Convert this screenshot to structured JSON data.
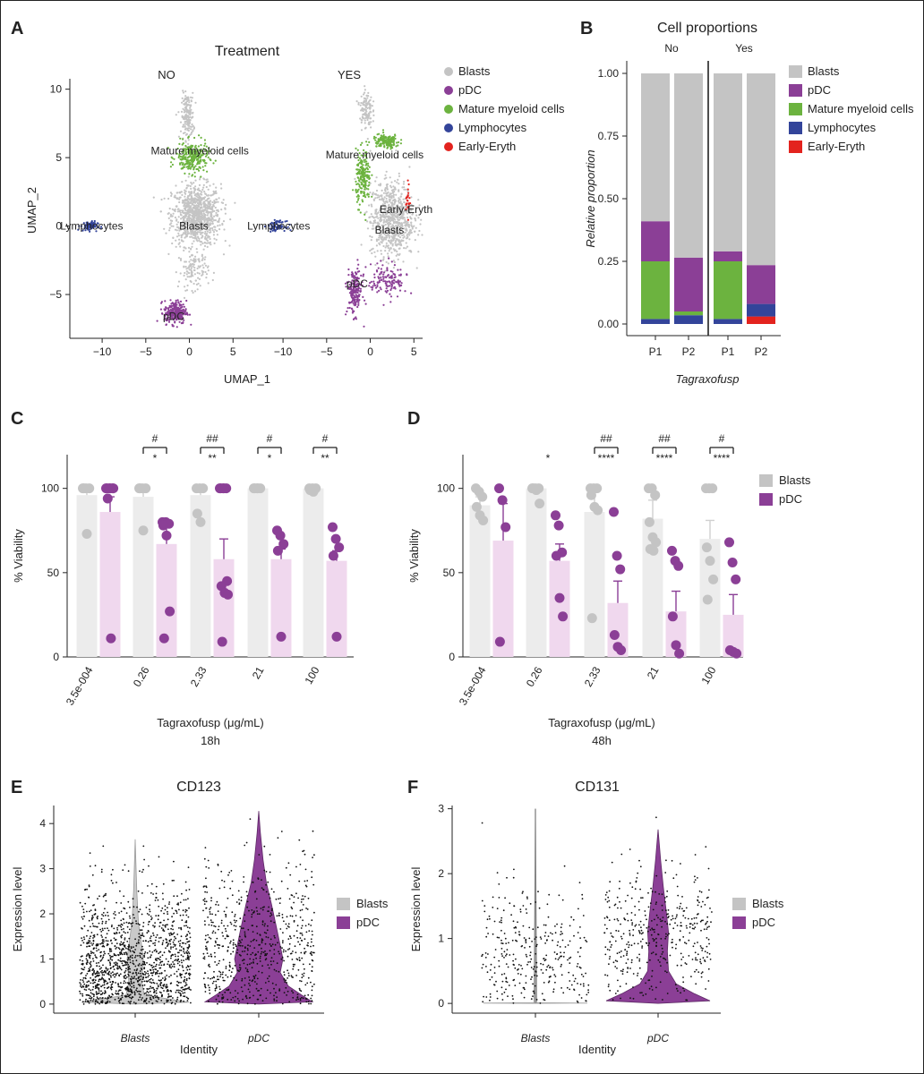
{
  "panels": {
    "A": "A",
    "B": "B",
    "C": "C",
    "D": "D",
    "E": "E",
    "F": "F"
  },
  "chart_data": [
    {
      "panel": "A",
      "type": "scatter",
      "title": "Treatment",
      "facets": [
        "NO",
        "YES"
      ],
      "xlabel": "UMAP_1",
      "ylabel": "UMAP_2",
      "xlim": [
        -13.5,
        6
      ],
      "ylim": [
        -8.2,
        10.5
      ],
      "x_ticks": [
        -10,
        -5,
        0,
        5
      ],
      "x_tick_labels": [
        "−10",
        "−5",
        "0",
        "5"
      ],
      "y_ticks": [
        -5,
        0,
        5,
        10
      ],
      "y_tick_labels": [
        "−5",
        "0",
        "5",
        "10"
      ],
      "legend": [
        {
          "name": "Blasts",
          "color": "#c4c4c4"
        },
        {
          "name": "pDC",
          "color": "#8b3f96"
        },
        {
          "name": "Mature myeloid cells",
          "color": "#6cb33f"
        },
        {
          "name": "Lymphocytes",
          "color": "#33449a"
        },
        {
          "name": "Early-Eryth",
          "color": "#e3231e"
        }
      ],
      "clusters": {
        "NO": [
          {
            "label": "Mature myeloid cells",
            "cx": 1.2,
            "cy": 5.5,
            "color": "#6cb33f"
          },
          {
            "label": "Lymphocytes",
            "cx": -11.2,
            "cy": 0.0,
            "color": "#33449a"
          },
          {
            "label": "Blasts",
            "cx": 0.5,
            "cy": 0.0,
            "color": "#c4c4c4"
          },
          {
            "label": "pDC",
            "cx": -1.8,
            "cy": -6.6,
            "color": "#8b3f96"
          }
        ],
        "YES": [
          {
            "label": "Mature myeloid cells",
            "cx": 0.5,
            "cy": 5.2,
            "color": "#6cb33f"
          },
          {
            "label": "Lymphocytes",
            "cx": -10.5,
            "cy": 0.0,
            "color": "#33449a"
          },
          {
            "label": "Early-Eryth",
            "cx": 4.1,
            "cy": 1.2,
            "color": "#e3231e"
          },
          {
            "label": "Blasts",
            "cx": 2.2,
            "cy": -0.3,
            "color": "#c4c4c4"
          },
          {
            "label": "pDC",
            "cx": -1.5,
            "cy": -4.2,
            "color": "#8b3f96"
          }
        ]
      }
    },
    {
      "panel": "B",
      "type": "bar",
      "title": "Cell proportions",
      "facets": [
        "No",
        "Yes"
      ],
      "categories": [
        "P1",
        "P2",
        "P1",
        "P2"
      ],
      "xlabel": "Tagraxofusp",
      "ylabel": "Relative proportion",
      "ylim": [
        0,
        1.0
      ],
      "y_ticks": [
        0,
        0.25,
        0.5,
        0.75,
        1.0
      ],
      "y_tick_labels": [
        "0.00",
        "0.25",
        "0.50",
        "0.75",
        "1.00"
      ],
      "series": [
        {
          "name": "Early-Eryth",
          "color": "#e3231e",
          "values": [
            0.0,
            0.0,
            0.0,
            0.03
          ]
        },
        {
          "name": "Lymphocytes",
          "color": "#33449a",
          "values": [
            0.02,
            0.035,
            0.02,
            0.05
          ]
        },
        {
          "name": "Mature myeloid cells",
          "color": "#6cb33f",
          "values": [
            0.23,
            0.015,
            0.23,
            0.0
          ]
        },
        {
          "name": "pDC",
          "color": "#8b3f96",
          "values": [
            0.16,
            0.215,
            0.04,
            0.155
          ]
        },
        {
          "name": "Blasts",
          "color": "#c4c4c4",
          "values": [
            0.59,
            0.735,
            0.71,
            0.765
          ]
        }
      ],
      "legend": [
        {
          "name": "Blasts",
          "color": "#c4c4c4"
        },
        {
          "name": "pDC",
          "color": "#8b3f96"
        },
        {
          "name": "Mature myeloid cells",
          "color": "#6cb33f"
        },
        {
          "name": "Lymphocytes",
          "color": "#33449a"
        },
        {
          "name": "Early-Eryth",
          "color": "#e3231e"
        }
      ]
    },
    {
      "panel": "C",
      "type": "bar",
      "categories": [
        "3.5e-004",
        "0.26",
        "2.33",
        "21",
        "100"
      ],
      "xlabel": "Tagraxofusp (μg/mL)",
      "subtitle": "18h",
      "ylabel": "% Viability",
      "ylim": [
        0,
        120
      ],
      "y_ticks": [
        0,
        50,
        100
      ],
      "y_tick_labels": [
        "0",
        "50",
        "100"
      ],
      "series": [
        {
          "name": "Blasts",
          "color": "#c4c4c4",
          "values": [
            96,
            95,
            96,
            100,
            100
          ],
          "errors": [
            2,
            3,
            3,
            0,
            0
          ],
          "points": [
            [
              100,
              100,
              100,
              100,
              73
            ],
            [
              100,
              100,
              100,
              100,
              75
            ],
            [
              100,
              100,
              100,
              85,
              80
            ],
            [
              100,
              100,
              100,
              100,
              100
            ],
            [
              100,
              100,
              100,
              99,
              98
            ]
          ]
        },
        {
          "name": "pDC",
          "color": "#8b3f96",
          "values": [
            86,
            67,
            58,
            58,
            57
          ],
          "errors": [
            9,
            11,
            12,
            6,
            6
          ],
          "points": [
            [
              100,
              100,
              100,
              100,
              100,
              100,
              94,
              11
            ],
            [
              80,
              80,
              79,
              78,
              72,
              27,
              11
            ],
            [
              100,
              100,
              100,
              100,
              100,
              45,
              42,
              38,
              37,
              9
            ],
            [
              75,
              72,
              67,
              63,
              12
            ],
            [
              77,
              70,
              65,
              60,
              12
            ]
          ]
        }
      ],
      "significance_hash": [
        "",
        "#",
        "##",
        "#",
        "#"
      ],
      "significance_star": [
        "",
        "*",
        "**",
        "*",
        "**"
      ],
      "legend": [
        {
          "name": "Blasts",
          "color": "#c4c4c4"
        },
        {
          "name": "pDC",
          "color": "#8b3f96"
        }
      ]
    },
    {
      "panel": "D",
      "type": "bar",
      "categories": [
        "3.5e-004",
        "0.26",
        "2.33",
        "21",
        "100"
      ],
      "xlabel": "Tagraxofusp (μg/mL)",
      "subtitle": "48h",
      "ylabel": "% Viability",
      "ylim": [
        0,
        120
      ],
      "y_ticks": [
        0,
        50,
        100
      ],
      "y_tick_labels": [
        "0",
        "50",
        "100"
      ],
      "series": [
        {
          "name": "Blasts",
          "color": "#c4c4c4",
          "values": [
            90,
            100,
            86,
            82,
            70
          ],
          "errors": [
            5,
            0,
            13,
            11,
            11
          ],
          "points": [
            [
              100,
              98,
              95,
              89,
              84,
              81
            ],
            [
              100,
              100,
              100,
              100,
              99,
              91
            ],
            [
              100,
              100,
              100,
              96,
              89,
              87,
              23
            ],
            [
              100,
              100,
              96,
              80,
              71,
              68,
              64,
              63
            ],
            [
              100,
              100,
              100,
              65,
              57,
              46,
              34
            ]
          ]
        },
        {
          "name": "pDC",
          "color": "#8b3f96",
          "values": [
            69,
            57,
            32,
            27,
            25
          ],
          "errors": [
            22,
            10,
            13,
            12,
            12
          ],
          "points": [
            [
              100,
              93,
              77,
              9
            ],
            [
              84,
              78,
              62,
              60,
              35,
              24
            ],
            [
              86,
              60,
              52,
              13,
              6,
              4
            ],
            [
              63,
              57,
              54,
              24,
              7,
              2
            ],
            [
              68,
              56,
              46,
              4,
              3,
              2
            ]
          ]
        }
      ],
      "significance_hash": [
        "",
        "",
        "##",
        "##",
        "#"
      ],
      "significance_star": [
        "",
        "*",
        "****",
        "****",
        "****"
      ],
      "legend": [
        {
          "name": "Blasts",
          "color": "#c4c4c4"
        },
        {
          "name": "pDC",
          "color": "#8b3f96"
        }
      ]
    },
    {
      "panel": "E",
      "type": "violin",
      "title": "CD123",
      "categories": [
        "Blasts",
        "pDC"
      ],
      "xlabel": "Identity",
      "ylabel": "Expression level",
      "ylim": [
        -0.2,
        4.4
      ],
      "y_ticks": [
        0,
        1,
        2,
        3,
        4
      ],
      "y_tick_labels": [
        "0",
        "1",
        "2",
        "3",
        "4"
      ],
      "series": [
        {
          "name": "Blasts",
          "color": "#c4c4c4",
          "max": 3.65,
          "density": [
            [
              0,
              0.0
            ],
            [
              0.04,
              1.0
            ],
            [
              0.2,
              0.17
            ],
            [
              0.5,
              0.12
            ],
            [
              1.0,
              0.15
            ],
            [
              1.3,
              0.12
            ],
            [
              1.8,
              0.06
            ],
            [
              2.5,
              0.03
            ],
            [
              3.2,
              0.012
            ],
            [
              3.65,
              0.0
            ]
          ]
        },
        {
          "name": "pDC",
          "color": "#8b3f96",
          "max": 4.28,
          "density": [
            [
              0,
              0.0
            ],
            [
              0.05,
              1.0
            ],
            [
              0.2,
              0.8
            ],
            [
              0.4,
              0.55
            ],
            [
              0.7,
              0.4
            ],
            [
              1.0,
              0.45
            ],
            [
              1.3,
              0.4
            ],
            [
              1.7,
              0.33
            ],
            [
              2.2,
              0.24
            ],
            [
              2.7,
              0.14
            ],
            [
              3.2,
              0.08
            ],
            [
              3.8,
              0.03
            ],
            [
              4.28,
              0.0
            ]
          ]
        }
      ],
      "legend": [
        {
          "name": "Blasts",
          "color": "#c4c4c4"
        },
        {
          "name": "pDC",
          "color": "#8b3f96"
        }
      ]
    },
    {
      "panel": "F",
      "type": "violin",
      "title": "CD131",
      "categories": [
        "Blasts",
        "pDC"
      ],
      "xlabel": "Identity",
      "ylabel": "Expression level",
      "ylim": [
        -0.15,
        3.05
      ],
      "y_ticks": [
        0,
        1,
        2,
        3
      ],
      "y_tick_labels": [
        "0",
        "1",
        "2",
        "3"
      ],
      "series": [
        {
          "name": "Blasts",
          "color": "#c4c4c4",
          "max": 3.0,
          "density": [
            [
              0,
              0.0
            ],
            [
              0.005,
              1.0
            ],
            [
              0.01,
              0.03
            ],
            [
              3.0,
              0.0
            ]
          ]
        },
        {
          "name": "pDC",
          "color": "#8b3f96",
          "max": 2.68,
          "density": [
            [
              0,
              0.0
            ],
            [
              0.04,
              1.0
            ],
            [
              0.15,
              0.7
            ],
            [
              0.3,
              0.35
            ],
            [
              0.5,
              0.2
            ],
            [
              0.8,
              0.18
            ],
            [
              1.1,
              0.2
            ],
            [
              1.4,
              0.16
            ],
            [
              1.8,
              0.1
            ],
            [
              2.2,
              0.05
            ],
            [
              2.68,
              0.0
            ]
          ]
        }
      ],
      "legend": [
        {
          "name": "Blasts",
          "color": "#c4c4c4"
        },
        {
          "name": "pDC",
          "color": "#8b3f96"
        }
      ]
    }
  ]
}
